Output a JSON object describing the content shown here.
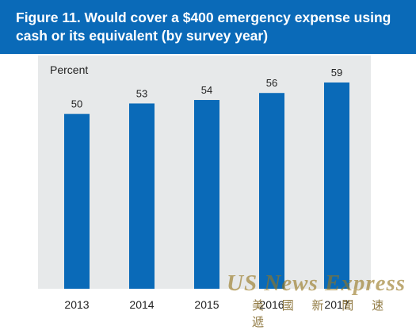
{
  "figure_title": "Figure 11. Would cover a $400 emergency expense using\ncash or its equivalent (by survey year)",
  "watermark": {
    "text": "US News Express",
    "subtext": "美 國 新 聞 速 遞"
  },
  "colors": {
    "title_bar": "#0a6ab8",
    "bar": "#0a6ab8",
    "panel": "#e7e9ea"
  },
  "chart_data": {
    "type": "bar",
    "title": "Figure 11. Would cover a $400 emergency expense using\ncash or its equivalent (by survey year)",
    "ylabel": "Percent",
    "xlabel": "",
    "categories": [
      "2013",
      "2014",
      "2015",
      "2016",
      "2017"
    ],
    "values": [
      50,
      53,
      54,
      56,
      59
    ],
    "ylim": [
      0,
      70
    ],
    "data_labels": true,
    "grid": false,
    "legend": "none"
  }
}
